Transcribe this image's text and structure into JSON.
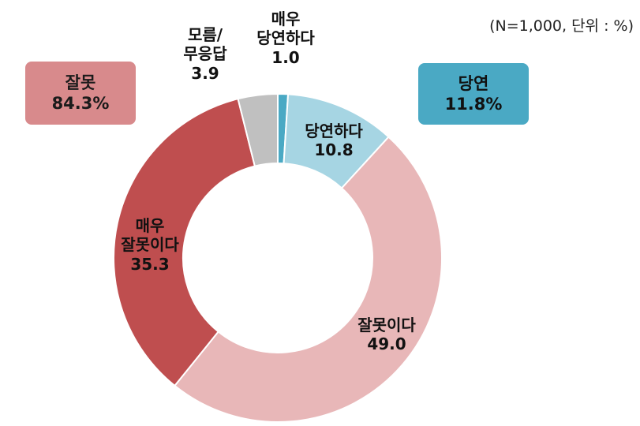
{
  "note": "(N=1,000, 단위 : %)",
  "summary": {
    "wrong": {
      "label": "잘못",
      "value": "84.3%"
    },
    "right": {
      "label": "당연",
      "value": "11.8%"
    }
  },
  "chart_data": {
    "type": "pie",
    "donut": true,
    "unit": "%",
    "title": "",
    "slices": [
      {
        "label": [
          "매우",
          "당연하다"
        ],
        "value": 1.0,
        "color": "#4aa9c4"
      },
      {
        "label": [
          "당연하다"
        ],
        "value": 10.8,
        "color": "#a6d5e3"
      },
      {
        "label": [
          "잘못이다"
        ],
        "value": 49.0,
        "color": "#e8b7b8"
      },
      {
        "label": [
          "매우",
          "잘못이다"
        ],
        "value": 35.3,
        "color": "#bf4e4f"
      },
      {
        "label": [
          "모름/",
          "무응답"
        ],
        "value": 3.9,
        "color": "#c0c0c0"
      }
    ]
  }
}
